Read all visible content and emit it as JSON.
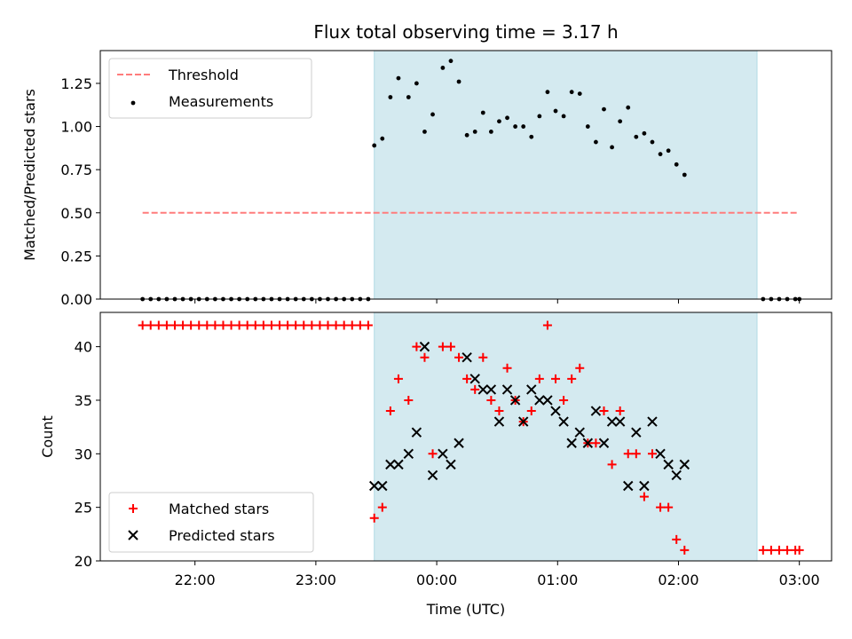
{
  "chart_data": [
    {
      "type": "scatter",
      "title": "Flux total observing time = 3.17 h",
      "ylabel": "Matched/Predicted stars",
      "ylim": [
        0,
        1.44
      ],
      "yticks": [
        0.0,
        0.25,
        0.5,
        0.75,
        1.0,
        1.25
      ],
      "ytick_labels": [
        "0.00",
        "0.25",
        "0.50",
        "0.75",
        "1.00",
        "1.25"
      ],
      "xlim": [
        "21:13",
        "03:16"
      ],
      "shaded_region": {
        "start": "23:29",
        "end": "02:39",
        "color": "#d4eaf0"
      },
      "threshold": {
        "name": "Threshold",
        "value": 0.5,
        "x_start": "21:34",
        "x_end": "03:00",
        "color": "#ff7c7c"
      },
      "legend": {
        "placement": "top-left",
        "entries": [
          "Threshold",
          "Measurements"
        ]
      },
      "series": [
        {
          "name": "Measurements",
          "color": "#000000",
          "points": [
            [
              "21:34",
              0
            ],
            [
              "21:38",
              0
            ],
            [
              "21:42",
              0
            ],
            [
              "21:46",
              0
            ],
            [
              "21:50",
              0
            ],
            [
              "21:54",
              0
            ],
            [
              "21:58",
              0
            ],
            [
              "22:02",
              0
            ],
            [
              "22:06",
              0
            ],
            [
              "22:10",
              0
            ],
            [
              "22:14",
              0
            ],
            [
              "22:18",
              0
            ],
            [
              "22:22",
              0
            ],
            [
              "22:26",
              0
            ],
            [
              "22:30",
              0
            ],
            [
              "22:34",
              0
            ],
            [
              "22:38",
              0
            ],
            [
              "22:42",
              0
            ],
            [
              "22:46",
              0
            ],
            [
              "22:50",
              0
            ],
            [
              "22:54",
              0
            ],
            [
              "22:58",
              0
            ],
            [
              "23:02",
              0
            ],
            [
              "23:06",
              0
            ],
            [
              "23:10",
              0
            ],
            [
              "23:14",
              0
            ],
            [
              "23:18",
              0
            ],
            [
              "23:22",
              0
            ],
            [
              "23:26",
              0
            ],
            [
              "23:29",
              0.89
            ],
            [
              "23:33",
              0.93
            ],
            [
              "23:37",
              1.17
            ],
            [
              "23:41",
              1.28
            ],
            [
              "23:46",
              1.17
            ],
            [
              "23:50",
              1.25
            ],
            [
              "23:54",
              0.97
            ],
            [
              "23:58",
              1.07
            ],
            [
              "00:03",
              1.34
            ],
            [
              "00:07",
              1.38
            ],
            [
              "00:11",
              1.26
            ],
            [
              "00:15",
              0.95
            ],
            [
              "00:19",
              0.97
            ],
            [
              "00:23",
              1.08
            ],
            [
              "00:27",
              0.97
            ],
            [
              "00:31",
              1.03
            ],
            [
              "00:35",
              1.05
            ],
            [
              "00:39",
              1.0
            ],
            [
              "00:43",
              1.0
            ],
            [
              "00:47",
              0.94
            ],
            [
              "00:51",
              1.06
            ],
            [
              "00:55",
              1.2
            ],
            [
              "00:59",
              1.09
            ],
            [
              "01:03",
              1.06
            ],
            [
              "01:07",
              1.2
            ],
            [
              "01:11",
              1.19
            ],
            [
              "01:15",
              1.0
            ],
            [
              "01:19",
              0.91
            ],
            [
              "01:23",
              1.1
            ],
            [
              "01:27",
              0.88
            ],
            [
              "01:31",
              1.03
            ],
            [
              "01:35",
              1.11
            ],
            [
              "01:39",
              0.94
            ],
            [
              "01:43",
              0.96
            ],
            [
              "01:47",
              0.91
            ],
            [
              "01:51",
              0.84
            ],
            [
              "01:55",
              0.86
            ],
            [
              "01:59",
              0.78
            ],
            [
              "02:03",
              0.72
            ],
            [
              "02:42",
              0
            ],
            [
              "02:46",
              0
            ],
            [
              "02:50",
              0
            ],
            [
              "02:54",
              0
            ],
            [
              "02:58",
              0
            ],
            [
              "03:00",
              0
            ]
          ]
        }
      ]
    },
    {
      "type": "scatter",
      "xlabel": "Time (UTC)",
      "ylabel": "Count",
      "ylim": [
        20,
        43.2
      ],
      "yticks": [
        20,
        25,
        30,
        35,
        40
      ],
      "ytick_labels": [
        "20",
        "25",
        "30",
        "35",
        "40"
      ],
      "xlim": [
        "21:13",
        "03:16"
      ],
      "xticks": [
        "22:00",
        "23:00",
        "00:00",
        "01:00",
        "02:00",
        "03:00"
      ],
      "shaded_region": {
        "start": "23:29",
        "end": "02:39",
        "color": "#d4eaf0"
      },
      "legend": {
        "placement": "bottom-left",
        "entries": [
          "Matched stars",
          "Predicted stars"
        ]
      },
      "series": [
        {
          "name": "Matched stars",
          "marker": "plus",
          "color": "#ff0000",
          "points": [
            [
              "21:34",
              42
            ],
            [
              "21:38",
              42
            ],
            [
              "21:42",
              42
            ],
            [
              "21:46",
              42
            ],
            [
              "21:50",
              42
            ],
            [
              "21:54",
              42
            ],
            [
              "21:58",
              42
            ],
            [
              "22:02",
              42
            ],
            [
              "22:06",
              42
            ],
            [
              "22:10",
              42
            ],
            [
              "22:14",
              42
            ],
            [
              "22:18",
              42
            ],
            [
              "22:22",
              42
            ],
            [
              "22:26",
              42
            ],
            [
              "22:30",
              42
            ],
            [
              "22:34",
              42
            ],
            [
              "22:38",
              42
            ],
            [
              "22:42",
              42
            ],
            [
              "22:46",
              42
            ],
            [
              "22:50",
              42
            ],
            [
              "22:54",
              42
            ],
            [
              "22:58",
              42
            ],
            [
              "23:02",
              42
            ],
            [
              "23:06",
              42
            ],
            [
              "23:10",
              42
            ],
            [
              "23:14",
              42
            ],
            [
              "23:18",
              42
            ],
            [
              "23:22",
              42
            ],
            [
              "23:26",
              42
            ],
            [
              "23:29",
              24
            ],
            [
              "23:33",
              25
            ],
            [
              "23:37",
              34
            ],
            [
              "23:41",
              37
            ],
            [
              "23:46",
              35
            ],
            [
              "23:50",
              40
            ],
            [
              "23:54",
              39
            ],
            [
              "23:58",
              30
            ],
            [
              "00:03",
              40
            ],
            [
              "00:07",
              40
            ],
            [
              "00:11",
              39
            ],
            [
              "00:15",
              37
            ],
            [
              "00:19",
              36
            ],
            [
              "00:23",
              39
            ],
            [
              "00:27",
              35
            ],
            [
              "00:31",
              34
            ],
            [
              "00:35",
              38
            ],
            [
              "00:39",
              35
            ],
            [
              "00:43",
              33
            ],
            [
              "00:47",
              34
            ],
            [
              "00:51",
              37
            ],
            [
              "00:55",
              42
            ],
            [
              "00:59",
              37
            ],
            [
              "01:03",
              35
            ],
            [
              "01:07",
              37
            ],
            [
              "01:11",
              38
            ],
            [
              "01:15",
              31
            ],
            [
              "01:19",
              31
            ],
            [
              "01:23",
              34
            ],
            [
              "01:27",
              29
            ],
            [
              "01:31",
              34
            ],
            [
              "01:35",
              30
            ],
            [
              "01:39",
              30
            ],
            [
              "01:43",
              26
            ],
            [
              "01:47",
              30
            ],
            [
              "01:51",
              25
            ],
            [
              "01:55",
              25
            ],
            [
              "01:59",
              22
            ],
            [
              "02:03",
              21
            ],
            [
              "02:42",
              21
            ],
            [
              "02:46",
              21
            ],
            [
              "02:50",
              21
            ],
            [
              "02:54",
              21
            ],
            [
              "02:58",
              21
            ],
            [
              "03:00",
              21
            ]
          ]
        },
        {
          "name": "Predicted stars",
          "marker": "x",
          "color": "#000000",
          "points": [
            [
              "23:29",
              27
            ],
            [
              "23:33",
              27
            ],
            [
              "23:37",
              29
            ],
            [
              "23:41",
              29
            ],
            [
              "23:46",
              30
            ],
            [
              "23:50",
              32
            ],
            [
              "23:54",
              40
            ],
            [
              "23:58",
              28
            ],
            [
              "00:03",
              30
            ],
            [
              "00:07",
              29
            ],
            [
              "00:11",
              31
            ],
            [
              "00:15",
              39
            ],
            [
              "00:19",
              37
            ],
            [
              "00:23",
              36
            ],
            [
              "00:27",
              36
            ],
            [
              "00:31",
              33
            ],
            [
              "00:35",
              36
            ],
            [
              "00:39",
              35
            ],
            [
              "00:43",
              33
            ],
            [
              "00:47",
              36
            ],
            [
              "00:51",
              35
            ],
            [
              "00:55",
              35
            ],
            [
              "00:59",
              34
            ],
            [
              "01:03",
              33
            ],
            [
              "01:07",
              31
            ],
            [
              "01:11",
              32
            ],
            [
              "01:15",
              31
            ],
            [
              "01:19",
              34
            ],
            [
              "01:23",
              31
            ],
            [
              "01:27",
              33
            ],
            [
              "01:31",
              33
            ],
            [
              "01:35",
              27
            ],
            [
              "01:39",
              32
            ],
            [
              "01:43",
              27
            ],
            [
              "01:47",
              33
            ],
            [
              "01:51",
              30
            ],
            [
              "01:55",
              29
            ],
            [
              "01:59",
              28
            ],
            [
              "02:03",
              29
            ]
          ]
        }
      ]
    }
  ]
}
